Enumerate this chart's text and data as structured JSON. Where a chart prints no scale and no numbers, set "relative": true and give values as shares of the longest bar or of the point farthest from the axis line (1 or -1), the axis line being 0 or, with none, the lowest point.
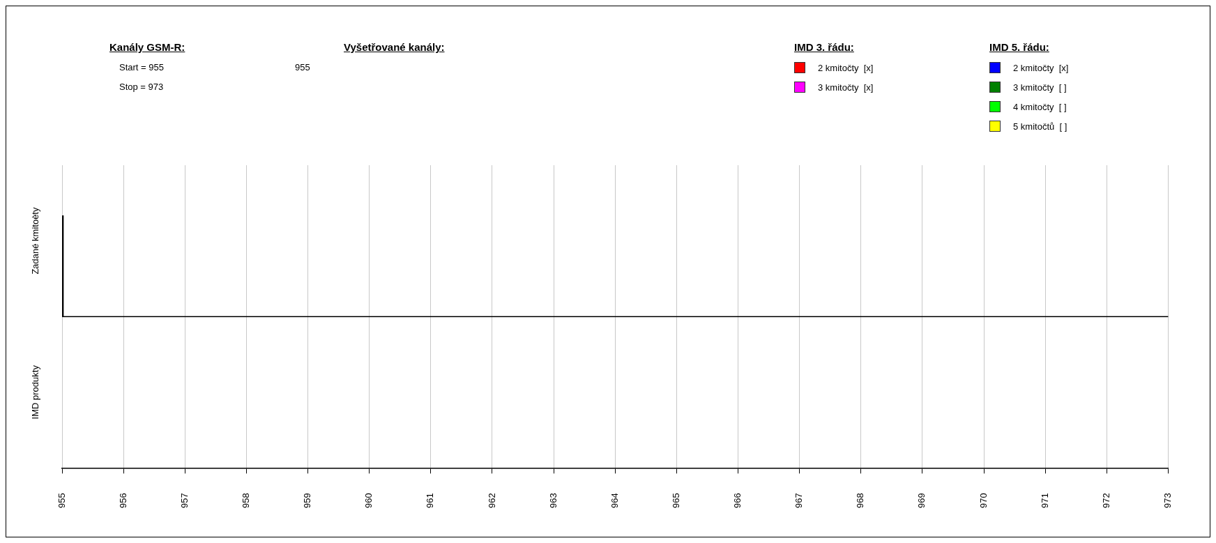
{
  "chart_data": {
    "type": "bar",
    "relative": true,
    "categories": [
      "955",
      "956",
      "957",
      "958",
      "959",
      "960",
      "961",
      "962",
      "963",
      "964",
      "965",
      "966",
      "967",
      "968",
      "969",
      "970",
      "971",
      "972",
      "973"
    ],
    "series": [
      {
        "color": "#000000",
        "values": [
          1,
          null,
          null,
          null,
          null,
          null,
          null,
          null,
          null,
          null,
          null,
          null,
          null,
          null,
          null,
          null,
          null,
          null,
          null
        ]
      },
      {
        "name": "2 kmitočty  [x]",
        "color": "#ff0000",
        "values": [
          null,
          null,
          null,
          null,
          null,
          null,
          null,
          null,
          null,
          null,
          null,
          null,
          null,
          null,
          null,
          null,
          null,
          null,
          null
        ]
      },
      {
        "name": "3 kmitočty  [x]",
        "color": "#ff00ff",
        "values": [
          null,
          null,
          null,
          null,
          null,
          null,
          null,
          null,
          null,
          null,
          null,
          null,
          null,
          null,
          null,
          null,
          null,
          null,
          null
        ]
      },
      {
        "name": "2 kmitočty  [x]",
        "color": "#0000ff",
        "values": [
          null,
          null,
          null,
          null,
          null,
          null,
          null,
          null,
          null,
          null,
          null,
          null,
          null,
          null,
          null,
          null,
          null,
          null,
          null
        ]
      },
      {
        "name": "3 kmitočty  [ ]",
        "color": "#008000",
        "values": [
          null,
          null,
          null,
          null,
          null,
          null,
          null,
          null,
          null,
          null,
          null,
          null,
          null,
          null,
          null,
          null,
          null,
          null,
          null
        ]
      },
      {
        "name": "4 kmitočty  [ ]",
        "color": "#00ff00",
        "values": [
          null,
          null,
          null,
          null,
          null,
          null,
          null,
          null,
          null,
          null,
          null,
          null,
          null,
          null,
          null,
          null,
          null,
          null,
          null
        ]
      },
      {
        "name": "5 kmitočtů  [ ]",
        "color": "#ffff00",
        "values": [
          null,
          null,
          null,
          null,
          null,
          null,
          null,
          null,
          null,
          null,
          null,
          null,
          null,
          null,
          null,
          null,
          null,
          null,
          null
        ]
      }
    ],
    "ylabel": "Zadané kmitoèty",
    "annotations": [
      "Kanály GSM-R:",
      "Start = 955",
      "Stop = 973",
      "Vyšetřované kanály:",
      "955",
      "IMD 3. řádu:",
      "IMD 5. řádu:",
      "IMD produkty"
    ],
    "grid": "x",
    "legend": "top right"
  }
}
